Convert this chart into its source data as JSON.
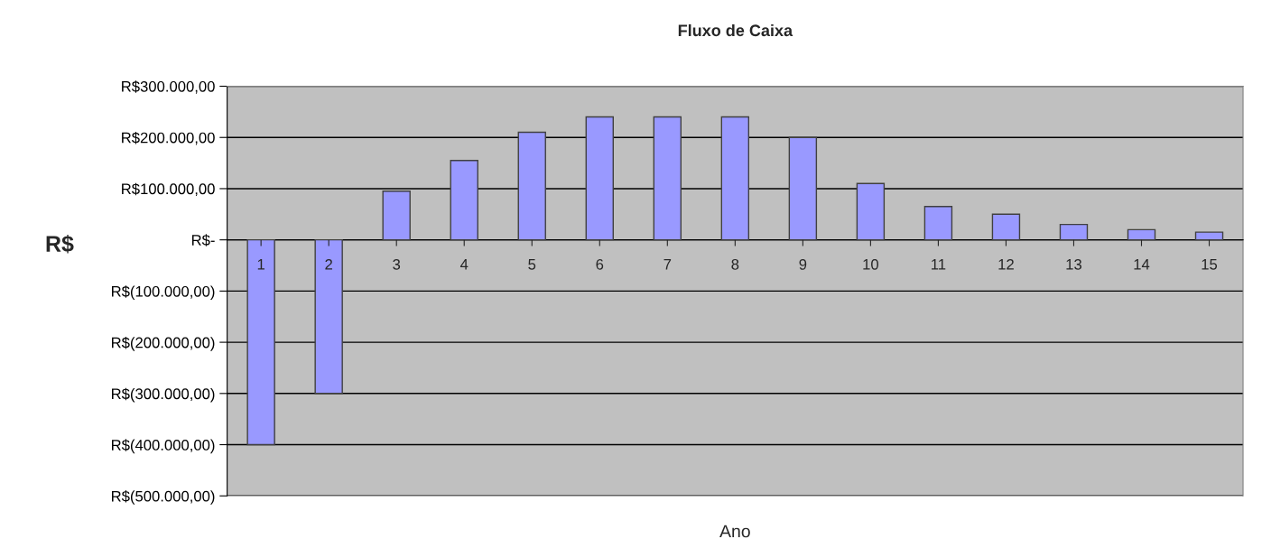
{
  "chart_data": {
    "type": "bar",
    "title": "Fluxo de Caixa",
    "xlabel": "Ano",
    "ylabel": "R$",
    "categories": [
      "1",
      "2",
      "3",
      "4",
      "5",
      "6",
      "7",
      "8",
      "9",
      "10",
      "11",
      "12",
      "13",
      "14",
      "15"
    ],
    "series": [
      {
        "color": "#9999ff",
        "values": [
          -400000,
          -300000,
          95000,
          155000,
          210000,
          240000,
          240000,
          240000,
          200000,
          110000,
          65000,
          50000,
          30000,
          20000,
          15000
        ]
      }
    ],
    "ylim": [
      -500000,
      300000
    ],
    "yticks": [
      {
        "value": 300000,
        "label": "R$300.000,00"
      },
      {
        "value": 200000,
        "label": "R$200.000,00"
      },
      {
        "value": 100000,
        "label": "R$100.000,00"
      },
      {
        "value": 0,
        "label": "R$-"
      },
      {
        "value": -100000,
        "label": "R$(100.000,00)"
      },
      {
        "value": -200000,
        "label": "R$(200.000,00)"
      },
      {
        "value": -300000,
        "label": "R$(300.000,00)"
      },
      {
        "value": -400000,
        "label": "R$(400.000,00)"
      },
      {
        "value": -500000,
        "label": "R$(500.000,00)"
      }
    ],
    "grid": "y",
    "legend": false
  }
}
